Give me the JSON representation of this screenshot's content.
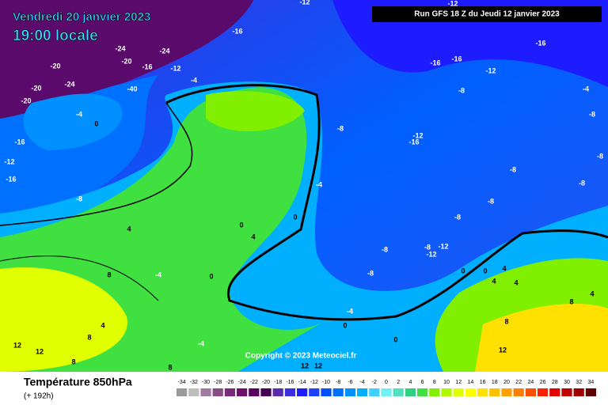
{
  "header": {
    "date": "Vendredi 20 janvier 2023",
    "time": "19:00 locale",
    "run": "Run GFS 18 Z du Jeudi 12 janvier 2023",
    "copyright": "Copyright © 2023 Meteociel.fr"
  },
  "footer": {
    "title": "Température 850hPa",
    "subtitle": "(+ 192h)"
  },
  "contour_labels": [
    -16,
    -24,
    -24,
    -20,
    -16,
    -12,
    -20,
    -24,
    -20,
    -20,
    -4,
    -40,
    -4,
    0,
    -16,
    -12,
    -16,
    -8,
    -16,
    -16,
    -16,
    -12,
    -8,
    -4,
    -8,
    -8,
    -12,
    -16,
    -8,
    -8,
    -8,
    -4,
    -8,
    -8,
    0,
    0,
    4,
    -8,
    -8,
    -12,
    -12,
    -8,
    0,
    0,
    0,
    4,
    4,
    4,
    8,
    -4,
    4,
    8,
    -4,
    0,
    0,
    8,
    4,
    8,
    12,
    12,
    -4,
    8,
    8,
    12,
    12,
    12,
    -12,
    -12,
    4
  ],
  "scale": {
    "values": [
      -34,
      -32,
      -30,
      -28,
      -26,
      -24,
      -22,
      -20,
      -18,
      -16,
      -14,
      -12,
      -10,
      -8,
      -6,
      -4,
      -2,
      0,
      2,
      4,
      6,
      8,
      10,
      12,
      14,
      16,
      18,
      20,
      22,
      24,
      26,
      28,
      30,
      32,
      34
    ],
    "colors": [
      "#9a9a9a",
      "#bdbdbd",
      "#a07ba0",
      "#8a4b8a",
      "#7a2a7a",
      "#6e0f6e",
      "#5a005f",
      "#440052",
      "#5a2ab0",
      "#3a2ee0",
      "#1c1cff",
      "#2040ff",
      "#0050ff",
      "#0070ff",
      "#0090ff",
      "#00b0ff",
      "#40d0ff",
      "#70f0f0",
      "#50e0c0",
      "#30d080",
      "#40e040",
      "#80f000",
      "#b0f800",
      "#e0ff00",
      "#ffff00",
      "#ffe000",
      "#ffc000",
      "#ffa000",
      "#ff8000",
      "#ff5000",
      "#ff2000",
      "#e00000",
      "#c00000",
      "#a00000",
      "#600000"
    ]
  }
}
